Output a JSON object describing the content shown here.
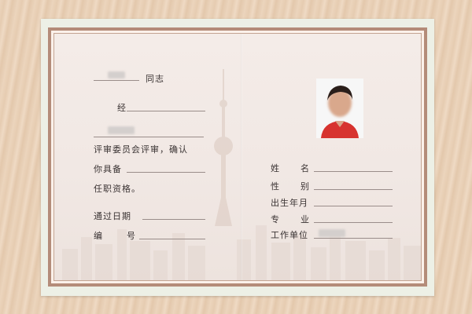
{
  "certificate": {
    "left": {
      "comrade": "同志",
      "via": "经",
      "review_line": "评审委员会评审，确认",
      "you_have": "你具备",
      "qualification": "任职资格。",
      "date_label": "通过日期",
      "number_label_1": "编",
      "number_label_2": "号"
    },
    "right": {
      "name_label_1": "姓",
      "name_label_2": "名",
      "gender_label_1": "性",
      "gender_label_2": "别",
      "birth_label": "出生年月",
      "major_label_1": "专",
      "major_label_2": "业",
      "workplace_label": "工作单位"
    }
  },
  "colors": {
    "frame": "#b48c79",
    "paper": "#f4ece8",
    "photo_shirt": "#d7332f"
  },
  "icons": [
    "portrait-photo",
    "pearl-tower-watermark",
    "skyline-watermark"
  ]
}
